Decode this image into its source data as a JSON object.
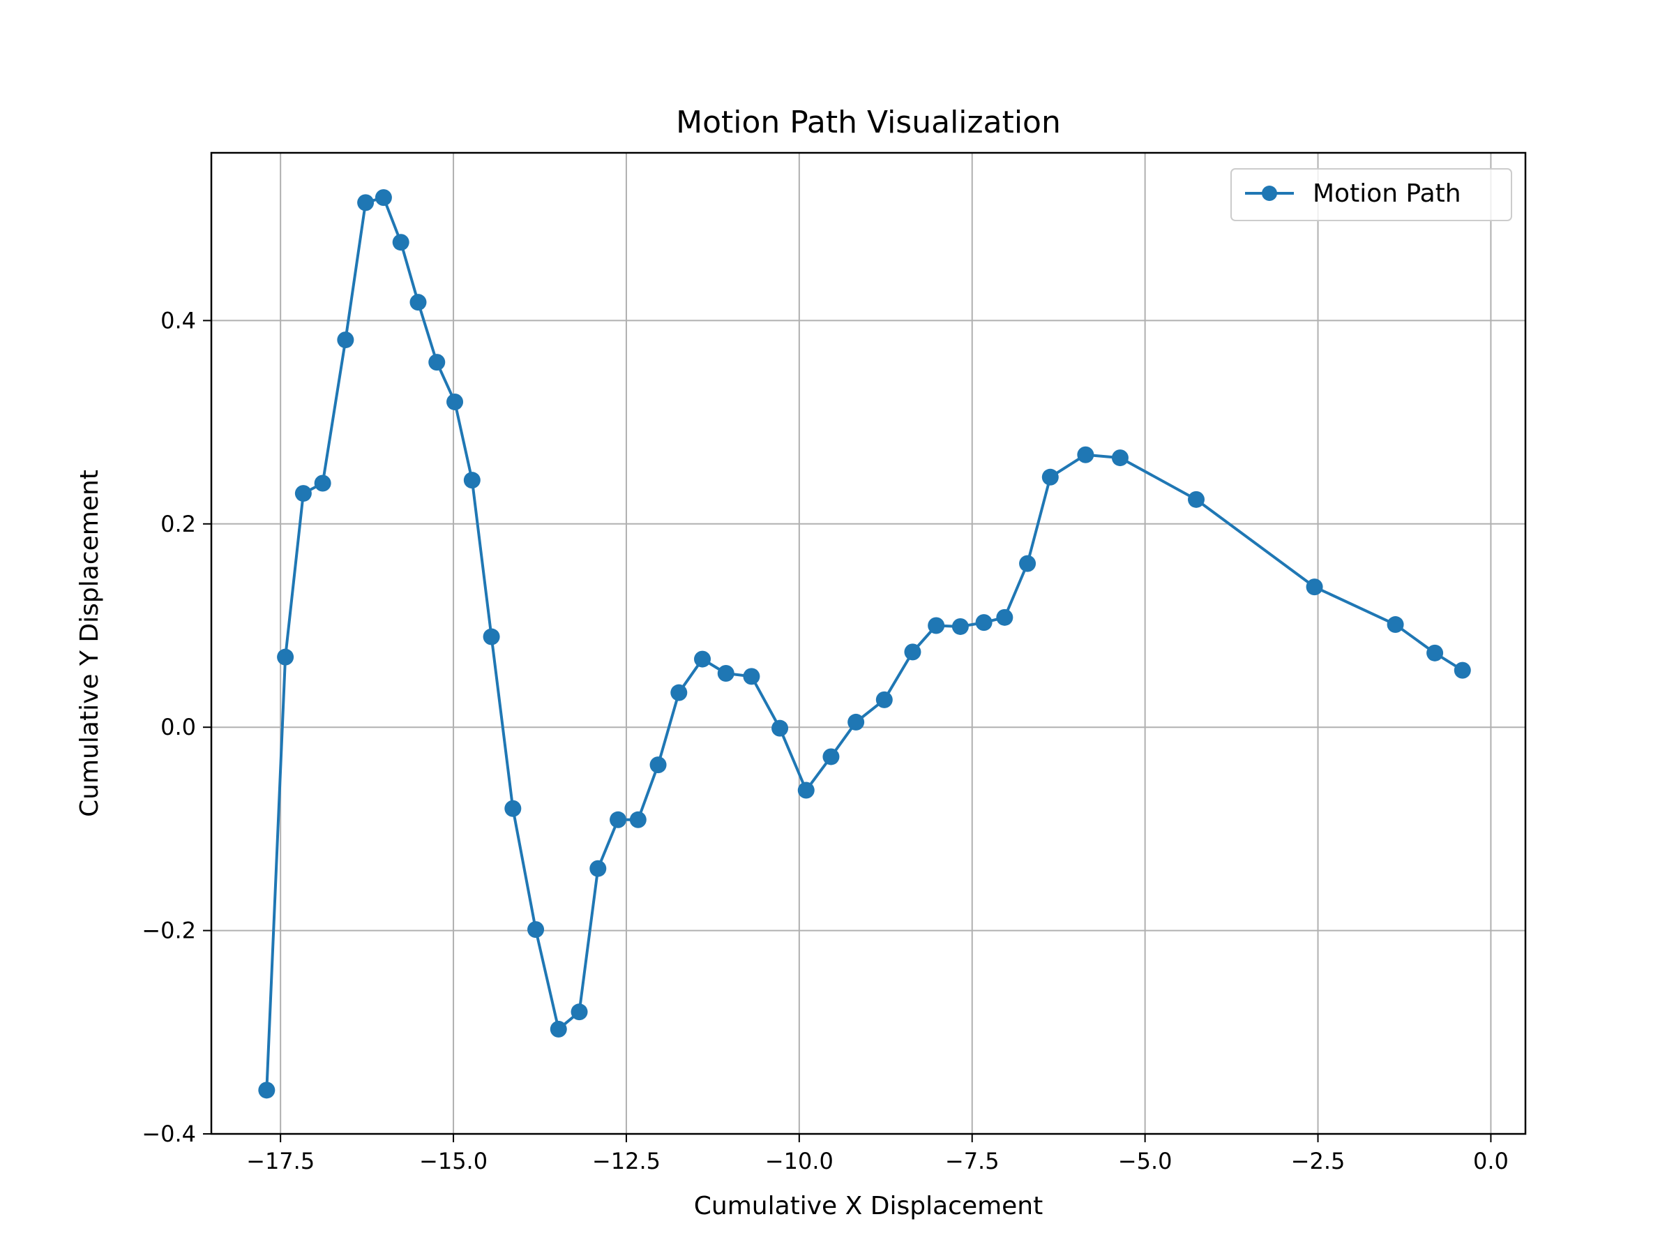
{
  "chart_data": {
    "type": "line",
    "title": "Motion Path Visualization",
    "xlabel": "Cumulative X Displacement",
    "ylabel": "Cumulative Y Displacement",
    "xlim": [
      -18.5,
      0.5
    ],
    "ylim": [
      -0.4,
      0.565
    ],
    "x_ticks": [
      -17.5,
      -15.0,
      -12.5,
      -10.0,
      -7.5,
      -5.0,
      -2.5,
      0.0
    ],
    "x_tick_labels": [
      "−17.5",
      "−15.0",
      "−12.5",
      "−10.0",
      "−7.5",
      "−5.0",
      "−2.5",
      "0.0"
    ],
    "y_ticks": [
      -0.4,
      -0.2,
      0.0,
      0.2,
      0.4
    ],
    "y_tick_labels": [
      "−0.4",
      "−0.2",
      "0.0",
      "0.2",
      "0.4"
    ],
    "grid": true,
    "legend_position": "top-right",
    "series": [
      {
        "name": "Motion Path",
        "color": "#1f77b4",
        "marker": "circle",
        "x": [
          -17.7,
          -17.43,
          -17.17,
          -16.89,
          -16.56,
          -16.27,
          -16.01,
          -15.76,
          -15.51,
          -15.24,
          -14.98,
          -14.73,
          -14.45,
          -14.14,
          -13.81,
          -13.48,
          -13.18,
          -12.91,
          -12.62,
          -12.33,
          -12.04,
          -11.74,
          -11.4,
          -11.06,
          -10.69,
          -10.28,
          -9.9,
          -9.54,
          -9.18,
          -8.77,
          -8.36,
          -8.02,
          -7.67,
          -7.33,
          -7.03,
          -6.7,
          -6.37,
          -5.86,
          -5.36,
          -4.26,
          -2.55,
          -1.38,
          -0.81,
          -0.41
        ],
        "y": [
          -0.357,
          0.069,
          0.23,
          0.24,
          0.381,
          0.516,
          0.521,
          0.477,
          0.418,
          0.359,
          0.32,
          0.243,
          0.089,
          -0.08,
          -0.199,
          -0.297,
          -0.28,
          -0.139,
          -0.091,
          -0.091,
          -0.037,
          0.034,
          0.067,
          0.053,
          0.05,
          -0.001,
          -0.062,
          -0.029,
          0.005,
          0.027,
          0.074,
          0.1,
          0.099,
          0.103,
          0.108,
          0.161,
          0.246,
          0.268,
          0.265,
          0.224,
          0.138,
          0.101,
          0.073,
          0.056
        ]
      }
    ]
  }
}
